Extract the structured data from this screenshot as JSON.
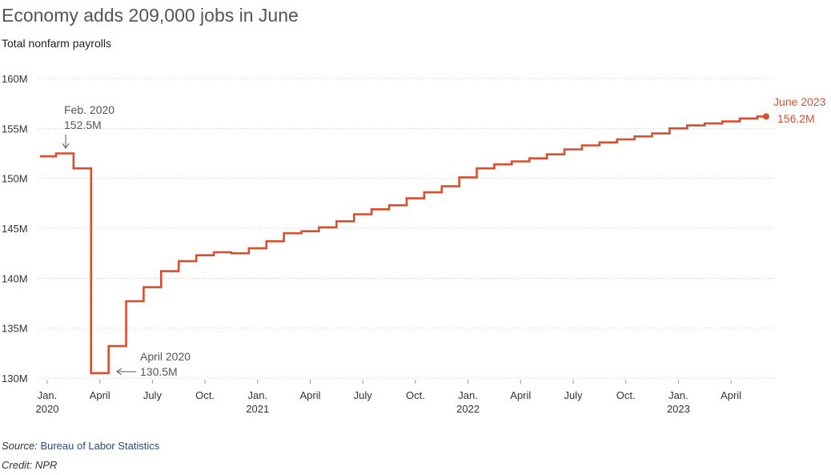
{
  "title": "Economy adds 209,000 jobs in June",
  "subtitle": "Total nonfarm payrolls",
  "source_label": "Source:",
  "source_name": "Bureau of Labor Statistics",
  "credit": "Credit: NPR",
  "colors": {
    "line": "#d94f2e",
    "grid": "#cccccc",
    "axis_text": "#333333",
    "annotation": "#555555"
  },
  "chart_data": {
    "type": "line",
    "step": true,
    "title": "Economy adds 209,000 jobs in June",
    "subtitle": "Total nonfarm payrolls",
    "xlabel": "",
    "ylabel": "",
    "ylim": [
      130,
      160
    ],
    "yticks": [
      {
        "value": 160,
        "label": "160M"
      },
      {
        "value": 155,
        "label": "155M"
      },
      {
        "value": 150,
        "label": "150M"
      },
      {
        "value": 145,
        "label": "145M"
      },
      {
        "value": 140,
        "label": "140M"
      },
      {
        "value": 135,
        "label": "135M"
      },
      {
        "value": 130,
        "label": "130M"
      }
    ],
    "xticks": [
      {
        "month": 0,
        "label": "Jan.",
        "year": "2020"
      },
      {
        "month": 3,
        "label": "April",
        "year": ""
      },
      {
        "month": 6,
        "label": "July",
        "year": ""
      },
      {
        "month": 9,
        "label": "Oct.",
        "year": ""
      },
      {
        "month": 12,
        "label": "Jan.",
        "year": "2021"
      },
      {
        "month": 15,
        "label": "April",
        "year": ""
      },
      {
        "month": 18,
        "label": "July",
        "year": ""
      },
      {
        "month": 21,
        "label": "Oct.",
        "year": ""
      },
      {
        "month": 24,
        "label": "Jan.",
        "year": "2022"
      },
      {
        "month": 27,
        "label": "April",
        "year": ""
      },
      {
        "month": 30,
        "label": "July",
        "year": ""
      },
      {
        "month": 33,
        "label": "Oct.",
        "year": ""
      },
      {
        "month": 36,
        "label": "Jan.",
        "year": "2023"
      },
      {
        "month": 39,
        "label": "April",
        "year": ""
      }
    ],
    "x_range": [
      0,
      41
    ],
    "grid": true,
    "series": [
      {
        "values": [
          152.2,
          152.5,
          151.0,
          130.5,
          133.2,
          137.7,
          139.1,
          140.7,
          141.7,
          142.3,
          142.6,
          142.5,
          143.0,
          143.7,
          144.5,
          144.7,
          145.1,
          145.7,
          146.4,
          146.9,
          147.3,
          148.0,
          148.6,
          149.2,
          150.1,
          151.0,
          151.4,
          151.7,
          152.0,
          152.4,
          152.9,
          153.3,
          153.6,
          153.9,
          154.2,
          154.5,
          155.0,
          155.3,
          155.5,
          155.7,
          156.0,
          156.2
        ]
      }
    ],
    "annotations": [
      {
        "label": "Feb. 2020",
        "value": "152.5M"
      },
      {
        "label": "April 2020",
        "value": "130.5M"
      },
      {
        "label": "June 2023",
        "value": "156.2M"
      }
    ]
  }
}
